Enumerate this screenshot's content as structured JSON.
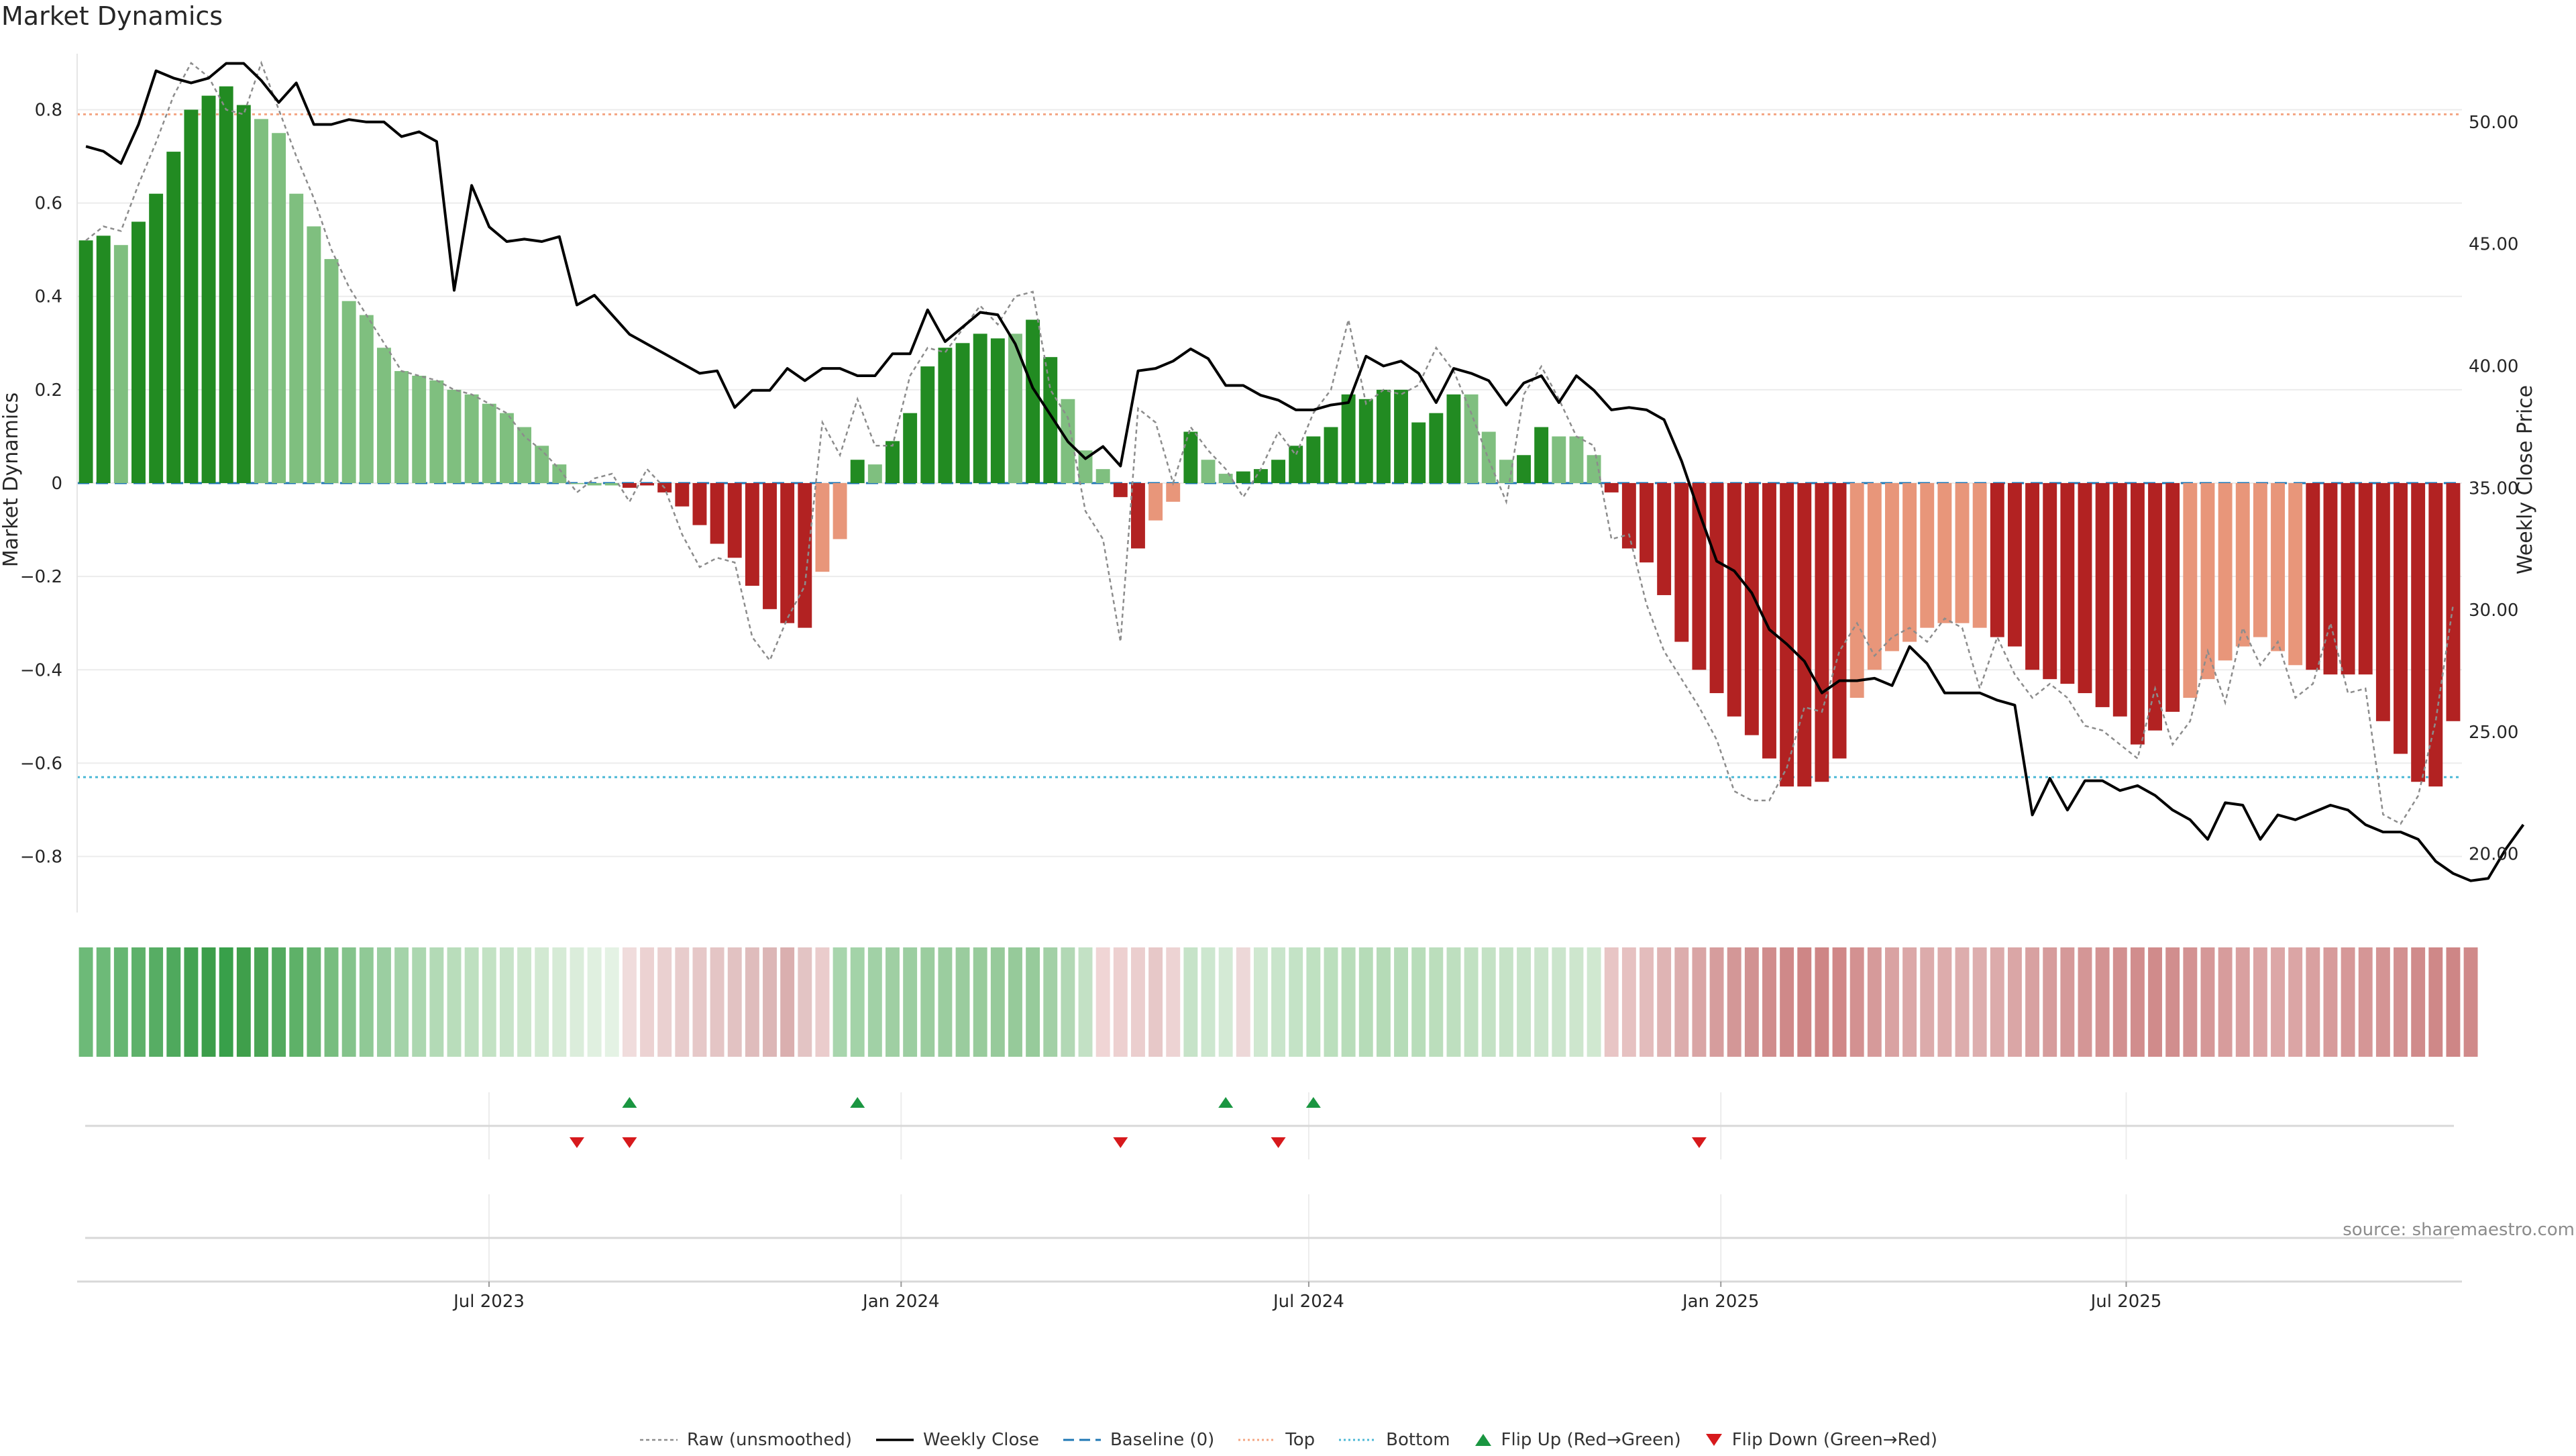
{
  "title": "Market Dynamics",
  "source": "source: sharemaestro.com",
  "legend": {
    "raw": "Raw (unsmoothed)",
    "close": "Weekly Close",
    "baseline": "Baseline (0)",
    "top": "Top",
    "bottom": "Bottom",
    "flip_up": "Flip Up (Red→Green)",
    "flip_down": "Flip Down (Green→Red)"
  },
  "colors": {
    "strong_green": "#228b22",
    "light_green": "#7fbf7f",
    "strong_red": "#b22222",
    "light_red": "#e8967a",
    "close_line": "#000000",
    "raw_line": "#8c8c8c",
    "baseline": "#1f77b4",
    "top": "#f4a582",
    "bottom": "#4cb8d6",
    "flip_up": "#1a9641",
    "flip_down": "#d7191c"
  },
  "chart_data": {
    "type": "bar",
    "title": "Market Dynamics",
    "ylabel": "Market Dynamics",
    "y2label": "Weekly Close Price",
    "ylim": [
      -0.92,
      0.92
    ],
    "y2lim": [
      17.6,
      52.8
    ],
    "yticks": [
      0.8,
      0.6,
      0.4,
      0.2,
      0,
      -0.2,
      -0.4,
      -0.6,
      -0.8
    ],
    "ytick_labels": [
      "0.8",
      "0.6",
      "0.4",
      "0.2",
      "0",
      "−0.2",
      "−0.4",
      "−0.6",
      "−0.8"
    ],
    "y2ticks": [
      50,
      45,
      40,
      35,
      30,
      25,
      20
    ],
    "y2tick_labels": [
      "50.00",
      "45.00",
      "40.00",
      "35.00",
      "30.00",
      "25.00",
      "20.00"
    ],
    "x_start": "2023-01-02",
    "x_end": "2025-11-24",
    "xticks": [
      {
        "date": "2023-07-01",
        "label": "Jul 2023"
      },
      {
        "date": "2024-01-01",
        "label": "Jan 2024"
      },
      {
        "date": "2024-07-01",
        "label": "Jul 2024"
      },
      {
        "date": "2025-01-01",
        "label": "Jan 2025"
      },
      {
        "date": "2025-07-01",
        "label": "Jul 2025"
      }
    ],
    "top_level": 0.79,
    "bottom_level": -0.63,
    "baseline": 0,
    "grid": true,
    "legend_position": "bottom-center",
    "bar_colors": [
      "SG",
      "SG",
      "LG",
      "SG",
      "SG",
      "SG",
      "SG",
      "SG",
      "SG",
      "SG",
      "LG",
      "LG",
      "LG",
      "LG",
      "LG",
      "LG",
      "LG",
      "LG",
      "LG",
      "LG",
      "LG",
      "LG",
      "LG",
      "LG",
      "LG",
      "LG",
      "LG",
      "LG",
      "LG",
      "LG",
      "LG",
      "SR",
      "SR",
      "SR",
      "SR",
      "SR",
      "SR",
      "SR",
      "SR",
      "SR",
      "SR",
      "SR",
      "LR",
      "LR",
      "SG",
      "LG",
      "SG",
      "SG",
      "SG",
      "SG",
      "SG",
      "SG",
      "SG",
      "LG",
      "SG",
      "SG",
      "LG",
      "LG",
      "LG",
      "SR",
      "SR",
      "LR",
      "LR",
      "SG",
      "LG",
      "LG",
      "SG",
      "SG",
      "SG",
      "SG",
      "SG",
      "SG",
      "SG",
      "SG",
      "SG",
      "SG",
      "SG",
      "SG",
      "SG",
      "LG",
      "LG",
      "LG",
      "SG",
      "SG",
      "LG",
      "LG",
      "LG",
      "SR",
      "SR",
      "SR",
      "SR",
      "SR",
      "SR",
      "SR",
      "SR",
      "SR",
      "SR",
      "SR",
      "SR",
      "SR",
      "SR",
      "LR",
      "LR",
      "LR",
      "LR",
      "LR",
      "LR",
      "LR",
      "LR",
      "SR",
      "SR",
      "SR",
      "SR",
      "SR",
      "SR",
      "SR",
      "SR",
      "SR",
      "SR",
      "SR",
      "LR",
      "LR",
      "LR",
      "LR",
      "LR",
      "LR",
      "LR",
      "SR",
      "SR",
      "SR",
      "SR",
      "SR",
      "SR",
      "SR",
      "SR",
      "SR",
      "LR"
    ],
    "series": [
      {
        "name": "Market Dynamics (smoothed)",
        "values": [
          0.52,
          0.53,
          0.51,
          0.56,
          0.62,
          0.71,
          0.8,
          0.83,
          0.85,
          0.81,
          0.78,
          0.75,
          0.62,
          0.55,
          0.48,
          0.39,
          0.36,
          0.29,
          0.24,
          0.23,
          0.22,
          0.2,
          0.19,
          0.17,
          0.15,
          0.12,
          0.08,
          0.04,
          0,
          -0.005,
          -0.005,
          -0.01,
          -0.005,
          -0.02,
          -0.05,
          -0.09,
          -0.13,
          -0.16,
          -0.22,
          -0.27,
          -0.3,
          -0.31,
          -0.19,
          -0.12,
          0.05,
          0.04,
          0.09,
          0.15,
          0.25,
          0.29,
          0.3,
          0.32,
          0.31,
          0.32,
          0.35,
          0.27,
          0.18,
          0.07,
          0.03,
          -0.03,
          -0.14,
          -0.08,
          -0.04,
          0.11,
          0.05,
          0.02,
          0.025,
          0.03,
          0.05,
          0.08,
          0.1,
          0.12,
          0.19,
          0.18,
          0.2,
          0.2,
          0.13,
          0.15,
          0.19,
          0.19,
          0.11,
          0.05,
          0.06,
          0.12,
          0.1,
          0.1,
          0.06,
          -0.02,
          -0.14,
          -0.17,
          -0.24,
          -0.34,
          -0.4,
          -0.45,
          -0.5,
          -0.54,
          -0.59,
          -0.65,
          -0.65,
          -0.64,
          -0.59,
          -0.46,
          -0.4,
          -0.36,
          -0.34,
          -0.31,
          -0.3,
          -0.3,
          -0.31,
          -0.33,
          -0.35,
          -0.4,
          -0.42,
          -0.43,
          -0.45,
          -0.48,
          -0.5,
          -0.56,
          -0.53,
          -0.49,
          -0.46,
          -0.42,
          -0.38,
          -0.35,
          -0.33,
          -0.36,
          -0.39,
          -0.4,
          -0.41,
          -0.41,
          -0.41,
          -0.51,
          -0.58,
          -0.64,
          -0.65,
          -0.51
        ]
      },
      {
        "name": "Raw (unsmoothed)",
        "values": [
          0.52,
          0.55,
          0.54,
          0.64,
          0.73,
          0.83,
          0.9,
          0.87,
          0.8,
          0.79,
          0.9,
          0.8,
          0.7,
          0.61,
          0.5,
          0.42,
          0.36,
          0.3,
          0.24,
          0.23,
          0.22,
          0.2,
          0.19,
          0.17,
          0.15,
          0.1,
          0.07,
          0.03,
          -0.02,
          0.01,
          0.02,
          -0.04,
          0.03,
          -0.01,
          -0.11,
          -0.18,
          -0.16,
          -0.17,
          -0.33,
          -0.38,
          -0.29,
          -0.22,
          0.13,
          0.06,
          0.18,
          0.08,
          0.08,
          0.23,
          0.29,
          0.28,
          0.33,
          0.38,
          0.34,
          0.4,
          0.41,
          0.2,
          0.14,
          -0.06,
          -0.12,
          -0.34,
          0.16,
          0.13,
          0.0,
          0.12,
          0.07,
          0.03,
          -0.03,
          0.03,
          0.11,
          0.06,
          0.15,
          0.2,
          0.35,
          0.17,
          0.2,
          0.19,
          0.21,
          0.29,
          0.24,
          0.15,
          0.05,
          -0.04,
          0.19,
          0.25,
          0.18,
          0.1,
          0.08,
          -0.12,
          -0.11,
          -0.26,
          -0.36,
          -0.42,
          -0.48,
          -0.55,
          -0.66,
          -0.68,
          -0.68,
          -0.61,
          -0.48,
          -0.49,
          -0.36,
          -0.3,
          -0.37,
          -0.33,
          -0.31,
          -0.34,
          -0.29,
          -0.31,
          -0.44,
          -0.33,
          -0.41,
          -0.46,
          -0.43,
          -0.46,
          -0.52,
          -0.53,
          -0.56,
          -0.59,
          -0.44,
          -0.56,
          -0.51,
          -0.36,
          -0.47,
          -0.31,
          -0.39,
          -0.34,
          -0.46,
          -0.43,
          -0.3,
          -0.45,
          -0.44,
          -0.71,
          -0.73,
          -0.67,
          -0.51,
          -0.26
        ]
      },
      {
        "name": "Weekly Close",
        "values": [
          49.0,
          48.8,
          48.3,
          49.9,
          52.1,
          51.8,
          51.6,
          51.8,
          52.4,
          52.4,
          51.7,
          50.8,
          51.6,
          49.9,
          49.9,
          50.1,
          50.0,
          50.0,
          49.4,
          49.6,
          49.2,
          43.1,
          47.4,
          45.7,
          45.1,
          45.2,
          45.1,
          45.3,
          42.5,
          42.9,
          42.1,
          41.3,
          40.9,
          40.5,
          40.1,
          39.7,
          39.8,
          38.3,
          39.0,
          39.0,
          39.9,
          39.4,
          39.9,
          39.9,
          39.6,
          39.6,
          40.5,
          40.5,
          42.3,
          41.0,
          41.6,
          42.2,
          42.1,
          40.9,
          39.1,
          38.0,
          36.9,
          36.2,
          36.7,
          35.9,
          39.8,
          39.9,
          40.2,
          40.7,
          40.3,
          39.2,
          39.2,
          38.8,
          38.6,
          38.2,
          38.2,
          38.4,
          38.5,
          40.4,
          40.0,
          40.2,
          39.7,
          38.5,
          39.9,
          39.7,
          39.4,
          38.4,
          39.3,
          39.6,
          38.5,
          39.6,
          39.0,
          38.2,
          38.3,
          38.2,
          37.8,
          36.1,
          34.0,
          32.0,
          31.6,
          30.7,
          29.2,
          28.6,
          27.9,
          26.6,
          27.1,
          27.1,
          27.2,
          26.9,
          28.5,
          27.8,
          26.6,
          26.6,
          26.6,
          26.3,
          26.1,
          21.6,
          23.1,
          21.8,
          23.0,
          23.0,
          22.6,
          22.8,
          22.4,
          21.8,
          21.4,
          20.6,
          22.1,
          22.0,
          20.6,
          21.6,
          21.4,
          21.7,
          22.0,
          21.8,
          21.2,
          20.9,
          20.9,
          20.6,
          19.7,
          19.2,
          18.9,
          19.0,
          20.2,
          21.2
        ]
      }
    ],
    "regime_strip": {
      "name": "Regime intensity",
      "colors": [
        "#6dba78",
        "#6dba78",
        "#66b672",
        "#5eb16a",
        "#57ad64",
        "#4fa95d",
        "#44a352",
        "#3c9e4a",
        "#38a04a",
        "#3f9f4b",
        "#4aa555",
        "#53aa5f",
        "#5eb168",
        "#6ab673",
        "#77bd7f",
        "#84c38b",
        "#90c996",
        "#9bcea1",
        "#a4d3a9",
        "#acd7b0",
        "#b3dab6",
        "#b9ddbb",
        "#bee0c0",
        "#c3e2c4",
        "#c8e4c9",
        "#cde7cd",
        "#d2e9d2",
        "#d6ebd6",
        "#dbeddb",
        "#e0f0e0",
        "#e4f2e4",
        "#f0dcdc",
        "#ecd2d2",
        "#ead0d0",
        "#e8cccc",
        "#e6c8c8",
        "#e4c5c5",
        "#e2c2c2",
        "#dfbcbc",
        "#dcb6b6",
        "#daafaf",
        "#e3c4c4",
        "#eacccc",
        "#a8d5ad",
        "#a3d3a8",
        "#a1d1a6",
        "#9fcfa3",
        "#9ccea1",
        "#9bcd9f",
        "#9bcd9f",
        "#9acc9e",
        "#98cb9c",
        "#97ca9b",
        "#96ca9a",
        "#97cb9b",
        "#a2d0a6",
        "#b2d8b5",
        "#c3e1c5",
        "#f0d5d5",
        "#edd0d0",
        "#ebcece",
        "#e7c8c8",
        "#edd3d3",
        "#c6e3c8",
        "#cde7cf",
        "#d4ead5",
        "#edd8d8",
        "#cfe8d0",
        "#c9e5cb",
        "#c4e3c6",
        "#bfe1c1",
        "#bbdfbd",
        "#b8ddba",
        "#b6dcb8",
        "#b5dbb7",
        "#b6dcb8",
        "#b8ddba",
        "#bbdebc",
        "#bedfbf",
        "#c1e1c2",
        "#c4e2c5",
        "#c6e3c7",
        "#c8e4c9",
        "#cae5cb",
        "#cbe5cc",
        "#cde6cd",
        "#d0e8d0",
        "#e8c5c5",
        "#e6c1c1",
        "#e3bcbc",
        "#dfb4b4",
        "#dcadad",
        "#d9a5a5",
        "#d69d9d",
        "#d39797",
        "#d19292",
        "#d08d8d",
        "#cf8989",
        "#ce8686",
        "#ce8585",
        "#d08888",
        "#d39191",
        "#d69a9a",
        "#d9a2a2",
        "#dba8a8",
        "#dcabab",
        "#ddacac",
        "#ddadad",
        "#ddaeae",
        "#dcabab",
        "#daa6a6",
        "#d8a1a1",
        "#d69c9c",
        "#d59999",
        "#d49696",
        "#d39393",
        "#d29090",
        "#d18d8d",
        "#d08b8b",
        "#d18e8e",
        "#d39292",
        "#d59898",
        "#d79c9c",
        "#d9a0a0",
        "#dba4a4",
        "#dca7a7",
        "#dba5a5",
        "#d9a0a0",
        "#d79b9b",
        "#d69898",
        "#d59696",
        "#d49494",
        "#d29090",
        "#d08b8b",
        "#cf8888",
        "#ce8686",
        "#d08a8a"
      ]
    },
    "flip_up_indices": [
      31,
      44,
      65,
      70
    ],
    "flip_down_indices": [
      28,
      31,
      59,
      68,
      92
    ]
  }
}
